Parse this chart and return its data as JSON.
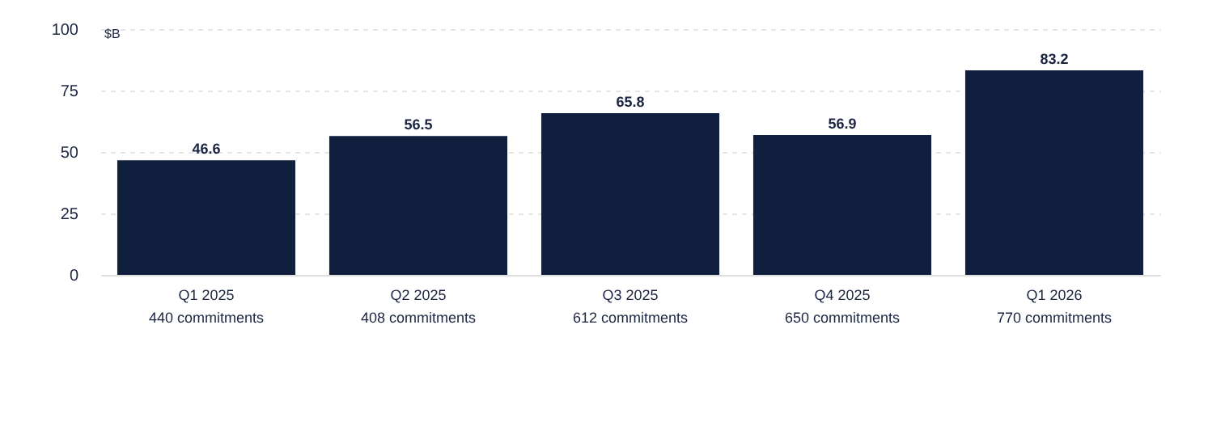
{
  "chart_data": {
    "type": "bar",
    "ylabel": "$B",
    "categories": [
      "Q1 2025\n440 commitments",
      "Q2 2025\n408 commitments",
      "Q3 2025\n612 commitments",
      "Q4 2025\n650 commitments",
      "Q1 2026\n770 commitments"
    ],
    "values": [
      46.6,
      56.5,
      65.8,
      56.9,
      83.2
    ],
    "color": "#0f1f3d",
    "ylim": [
      0,
      100
    ],
    "yticks": [
      0,
      25,
      50,
      75,
      100
    ],
    "grid": "y",
    "data_labels": true
  }
}
